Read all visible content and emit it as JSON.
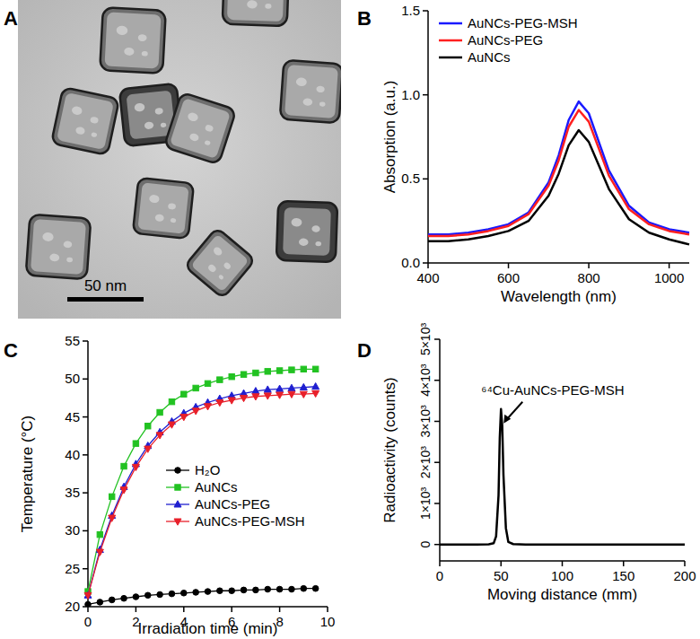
{
  "chart_data": [
    {
      "type": "image",
      "panel": "A",
      "annotations": [
        "50 nm"
      ]
    },
    {
      "type": "line",
      "panel": "B",
      "x_label": "Wavelength (nm)",
      "y_label": "Absorption (a.u.)",
      "x": [
        400,
        450,
        500,
        550,
        600,
        650,
        700,
        725,
        750,
        775,
        800,
        825,
        850,
        900,
        950,
        1000,
        1050
      ],
      "series": [
        {
          "name": "AuNCs-PEG-MSH",
          "color": "#1a1aff",
          "values": [
            0.17,
            0.17,
            0.18,
            0.2,
            0.23,
            0.3,
            0.48,
            0.64,
            0.85,
            0.96,
            0.89,
            0.72,
            0.55,
            0.34,
            0.24,
            0.2,
            0.18
          ]
        },
        {
          "name": "AuNCs-PEG",
          "color": "#ff2020",
          "values": [
            0.16,
            0.16,
            0.17,
            0.19,
            0.22,
            0.29,
            0.46,
            0.61,
            0.81,
            0.91,
            0.84,
            0.68,
            0.52,
            0.32,
            0.23,
            0.19,
            0.17
          ]
        },
        {
          "name": "AuNCs",
          "color": "#000000",
          "values": [
            0.13,
            0.13,
            0.14,
            0.16,
            0.19,
            0.25,
            0.4,
            0.53,
            0.7,
            0.79,
            0.72,
            0.58,
            0.44,
            0.26,
            0.18,
            0.14,
            0.11
          ]
        }
      ],
      "xlim": [
        400,
        1050
      ],
      "ylim": [
        0,
        1.5
      ],
      "xticks": [
        400,
        600,
        800,
        1000
      ],
      "yticks": [
        {
          "value": 0,
          "label": "0.0"
        },
        0.5,
        {
          "value": 1,
          "label": "1.0"
        },
        1.5
      ],
      "legend": "upper left"
    },
    {
      "type": "line",
      "panel": "C",
      "x_label": "Irradiation time (min)",
      "y_label": "Temperature (°C)",
      "x": [
        0,
        0.5,
        1,
        1.5,
        2,
        2.5,
        3,
        3.5,
        4,
        4.5,
        5,
        5.5,
        6,
        6.5,
        7,
        7.5,
        8,
        8.5,
        9,
        9.5
      ],
      "series": [
        {
          "name": "H₂O",
          "color": "#000000",
          "marker": "circle",
          "values": [
            20.3,
            20.6,
            20.9,
            21.1,
            21.3,
            21.5,
            21.6,
            21.7,
            21.8,
            21.9,
            22.0,
            22.1,
            22.1,
            22.2,
            22.2,
            22.3,
            22.3,
            22.3,
            22.4,
            22.4
          ]
        },
        {
          "name": "AuNCs",
          "color": "#22c222",
          "marker": "square",
          "values": [
            22.0,
            29.5,
            34.5,
            38.5,
            41.5,
            43.8,
            45.6,
            47.0,
            48.0,
            48.8,
            49.4,
            49.9,
            50.3,
            50.6,
            50.8,
            51.0,
            51.1,
            51.2,
            51.3,
            51.3
          ]
        },
        {
          "name": "AuNCs-PEG",
          "color": "#1f1fd0",
          "marker": "triangle",
          "values": [
            21.5,
            27.5,
            32.0,
            35.8,
            38.8,
            41.2,
            43.0,
            44.4,
            45.5,
            46.3,
            46.9,
            47.4,
            47.8,
            48.1,
            48.4,
            48.6,
            48.7,
            48.8,
            48.9,
            49.0
          ]
        },
        {
          "name": "AuNCs-PEG-MSH",
          "color": "#e8202a",
          "marker": "triangle-down",
          "values": [
            21.5,
            27.2,
            31.7,
            35.4,
            38.4,
            40.8,
            42.6,
            44.0,
            45.0,
            45.8,
            46.4,
            46.9,
            47.2,
            47.5,
            47.7,
            47.8,
            47.9,
            48.0,
            48.0,
            48.1
          ]
        }
      ],
      "xlim": [
        0,
        10
      ],
      "ylim": [
        20,
        55
      ],
      "xticks": [
        0,
        2,
        4,
        6,
        8,
        10
      ],
      "yticks": [
        20,
        25,
        30,
        35,
        40,
        45,
        50,
        55
      ],
      "legend": "lower right"
    },
    {
      "type": "line",
      "panel": "D",
      "x_label": "Moving distance (mm)",
      "y_label": "Radioactivity (counts)",
      "annotations": [
        "⁶⁴Cu-AuNCs-PEG-MSH"
      ],
      "x": [
        0,
        10,
        20,
        30,
        40,
        44,
        46,
        48,
        49,
        50,
        51,
        52,
        54,
        56,
        60,
        70,
        100,
        150,
        200
      ],
      "series": [
        {
          "color": "#000000",
          "values": [
            0,
            0,
            0,
            0,
            5,
            30,
            200,
            1200,
            2600,
            3300,
            2900,
            1700,
            400,
            60,
            10,
            0,
            0,
            0,
            0
          ]
        }
      ],
      "xlim": [
        0,
        200
      ],
      "ylim": [
        -400,
        5000
      ],
      "xticks": [
        0,
        50,
        100,
        150,
        200
      ],
      "yticks": [
        0,
        {
          "value": 1000,
          "label": "1×10³"
        },
        {
          "value": 2000,
          "label": "2×10³"
        },
        {
          "value": 3000,
          "label": "3×10³"
        },
        {
          "value": 4000,
          "label": "4×10³"
        },
        {
          "value": 5000,
          "label": "5×10³"
        }
      ]
    }
  ]
}
